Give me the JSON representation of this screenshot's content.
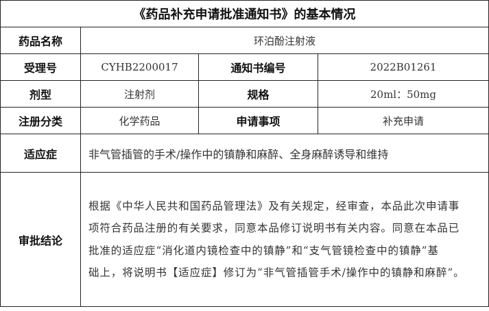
{
  "title": "《药品补充申请批准通知书》的基本情况",
  "rows": {
    "drug_name": {
      "label": "药品名称",
      "value": "环泊酚注射液"
    },
    "acceptance_no": {
      "label": "受理号",
      "value": "CYHB2200017"
    },
    "notice_no": {
      "label": "通知书编号",
      "value": "2022B01261"
    },
    "dosage_form": {
      "label": "剂型",
      "value": "注射剂"
    },
    "specification": {
      "label": "规格",
      "value": "20ml：50mg"
    },
    "registration_class": {
      "label": "注册分类",
      "value": "化学药品"
    },
    "application_item": {
      "label": "申请事项",
      "value": "补充申请"
    },
    "indication": {
      "label": "适应症",
      "value": "非气管插管的手术/操作中的镇静和麻醉、全身麻醉诱导和维持"
    },
    "conclusion": {
      "label": "审批结论",
      "lines": [
        "根据《中华人民共和国药品管理法》及有关规定，经审查，本品此次申请事",
        "项符合药品注册的有关要求，同意本品修订说明书有关内容。同意在本品已",
        "批准的适应症“消化道内镜检查中的镇静”和“支气管镜检查中的镇静”基",
        "础上，将说明书【适应症】修订为“非气管插管手术/操作中的镇静和麻醉”。"
      ]
    }
  }
}
